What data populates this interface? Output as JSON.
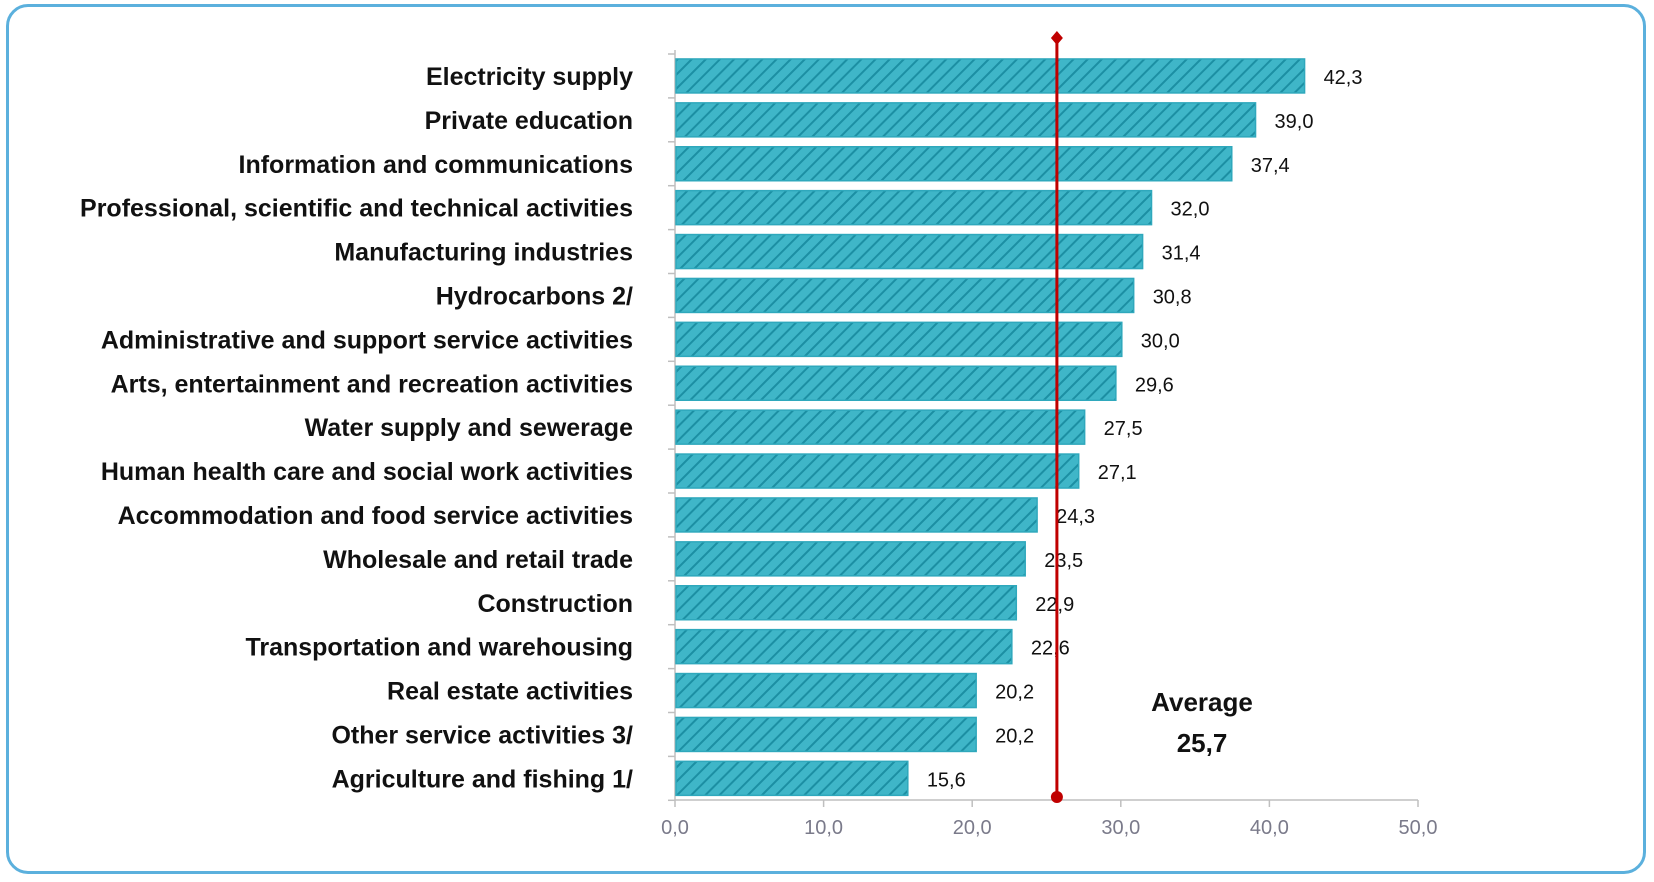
{
  "chart_data": {
    "type": "bar",
    "orientation": "horizontal",
    "categories": [
      "Electricity supply",
      "Private education",
      "Information and communications",
      "Professional, scientific and technical activities",
      "Manufacturing industries",
      "Hydrocarbons 2/",
      "Administrative and support service activities",
      "Arts, entertainment and recreation activities",
      "Water supply and sewerage",
      "Human health care and social work activities",
      "Accommodation and food service activities",
      "Wholesale and retail trade",
      "Construction",
      "Transportation and warehousing",
      "Real estate activities",
      "Other service activities 3/",
      "Agriculture and fishing 1/"
    ],
    "values": [
      42.3,
      39.0,
      37.4,
      32.0,
      31.4,
      30.8,
      30.0,
      29.6,
      27.5,
      27.1,
      24.3,
      23.5,
      22.9,
      22.6,
      20.2,
      20.2,
      15.6
    ],
    "value_labels": [
      "42,3",
      "39,0",
      "37,4",
      "32,0",
      "31,4",
      "30,8",
      "30,0",
      "29,6",
      "27,5",
      "27,1",
      "24,3",
      "23,5",
      "22,9",
      "22,6",
      "20,2",
      "20,2",
      "15,6"
    ],
    "xlim": [
      0,
      50
    ],
    "x_ticks": [
      0,
      10,
      20,
      30,
      40,
      50
    ],
    "x_tick_labels": [
      "0,0",
      "10,0",
      "20,0",
      "30,0",
      "40,0",
      "50,0"
    ],
    "average": {
      "value": 25.7,
      "label": "Average",
      "value_label": "25,7",
      "color": "#c00000"
    },
    "bar_color": "#3fb6c8",
    "bar_hatch_color": "#1c8fa3",
    "grid": false
  }
}
